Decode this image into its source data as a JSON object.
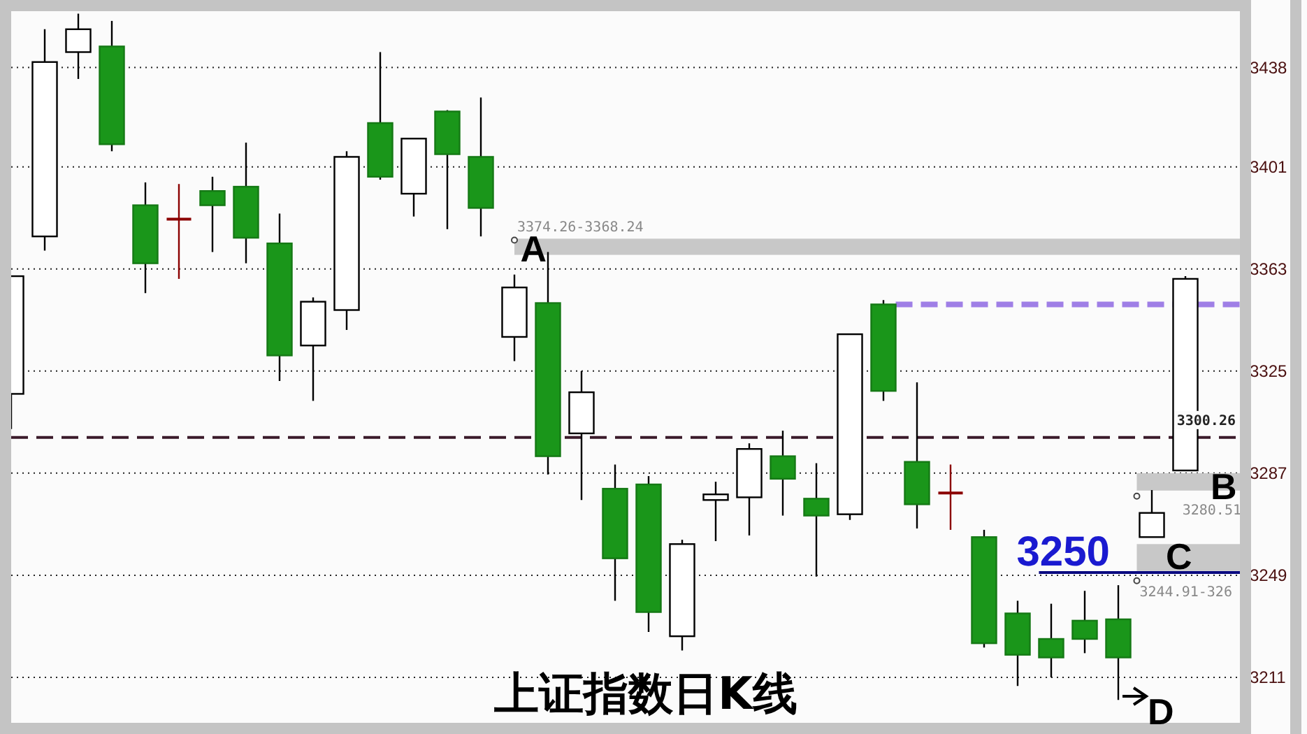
{
  "chart_data": {
    "type": "candlestick",
    "title": "上证指数日K线",
    "categories": [
      null,
      null,
      null,
      null,
      null,
      null,
      null,
      null,
      null,
      null,
      null,
      null,
      null,
      null,
      null,
      null,
      null,
      null,
      null,
      null,
      null,
      null,
      null,
      null,
      null,
      null,
      null,
      null,
      null,
      null,
      null,
      null,
      null,
      null,
      null,
      null
    ],
    "ohlc": [
      [
        3316.5,
        3360.3,
        3303.4,
        3360.3
      ],
      [
        3375.1,
        3452.2,
        3369.8,
        3440.0
      ],
      [
        3443.7,
        3458.0,
        3433.7,
        3452.2
      ],
      [
        3445.8,
        3455.3,
        3406.8,
        3409.4
      ],
      [
        3386.7,
        3395.2,
        3354.0,
        3365.1
      ],
      [
        3381.5,
        3394.6,
        3359.3,
        3381.5
      ],
      [
        3392.0,
        3397.3,
        3369.3,
        3386.7
      ],
      [
        3393.6,
        3410.0,
        3365.1,
        3374.6
      ],
      [
        3372.5,
        3383.6,
        3321.3,
        3330.8
      ],
      [
        3334.5,
        3352.4,
        3313.9,
        3350.8
      ],
      [
        3347.7,
        3406.8,
        3340.3,
        3404.7
      ],
      [
        3417.3,
        3443.7,
        3396.2,
        3397.3
      ],
      [
        3391.0,
        3411.5,
        3382.5,
        3411.5
      ],
      [
        3421.6,
        3422.1,
        3377.8,
        3405.7
      ],
      [
        3404.7,
        3426.8,
        3375.1,
        3385.7
      ],
      [
        3337.7,
        3360.9,
        3328.7,
        3356.1
      ],
      [
        3350.3,
        3369.3,
        3286.5,
        3293.3
      ],
      [
        3301.8,
        3325.0,
        3277.0,
        3317.1
      ],
      [
        3281.2,
        3290.2,
        3239.5,
        3255.3
      ],
      [
        3282.8,
        3285.9,
        3227.9,
        3235.3
      ],
      [
        3226.3,
        3262.2,
        3221.0,
        3260.6
      ],
      [
        3277.0,
        3283.8,
        3261.7,
        3279.1
      ],
      [
        3278.0,
        3298.1,
        3263.8,
        3296.0
      ],
      [
        3293.3,
        3302.8,
        3271.2,
        3284.9
      ],
      [
        3277.5,
        3290.7,
        3248.5,
        3271.2
      ],
      [
        3271.7,
        3338.7,
        3269.6,
        3338.7
      ],
      [
        3349.8,
        3351.4,
        3313.9,
        3317.6
      ],
      [
        3291.2,
        3320.8,
        3266.4,
        3275.4
      ],
      [
        3279.6,
        3290.2,
        3265.9,
        3279.6
      ],
      [
        3263.2,
        3265.9,
        3222.1,
        3223.7
      ],
      [
        3234.8,
        3239.5,
        3207.8,
        3219.4
      ],
      [
        3225.3,
        3238.4,
        3211.0,
        3218.4
      ],
      [
        3232.1,
        3243.2,
        3220.0,
        3225.3
      ],
      [
        3232.6,
        3245.3,
        3202.6,
        3218.4
      ],
      [
        3263.2,
        3280.7,
        3263.2,
        3272.2
      ],
      [
        3288.0,
        3360.3,
        3288.0,
        3359.3
      ]
    ],
    "colors": [
      "#ffffff",
      "#ffffff",
      "#ffffff",
      "#1a961a",
      "#1a961a",
      "#8b0000",
      "#1a961a",
      "#1a961a",
      "#1a961a",
      "#ffffff",
      "#ffffff",
      "#1a961a",
      "#ffffff",
      "#1a961a",
      "#1a961a",
      "#ffffff",
      "#1a961a",
      "#ffffff",
      "#1a961a",
      "#1a961a",
      "#ffffff",
      "#ffffff",
      "#ffffff",
      "#1a961a",
      "#1a961a",
      "#ffffff",
      "#1a961a",
      "#1a961a",
      "#8b0000",
      "#1a961a",
      "#1a961a",
      "#1a961a",
      "#1a961a",
      "#1a961a",
      "#ffffff",
      "#ffffff"
    ],
    "ylim": [
      3192,
      3461
    ],
    "yticks": [
      3211,
      3249,
      3287,
      3325,
      3363,
      3401,
      3438
    ],
    "grid": "y",
    "ref_lines": [
      {
        "axis": "y",
        "value": 3300.26,
        "label": "3300.26",
        "color": "#3a1a2a",
        "line_style": "dashed"
      },
      {
        "axis": "y",
        "value": 3349.8,
        "color": "#9f7fe6",
        "line_style": "dashed"
      },
      {
        "axis": "y",
        "value": 3250,
        "label": "3250",
        "color": "#0a0a80",
        "line_style": "solid"
      }
    ],
    "bands": [
      {
        "axis": "y",
        "from": 3368.24,
        "to": 3374.26,
        "label": "3374.26-3368.24",
        "color": "#c8c8c8"
      },
      {
        "axis": "y",
        "from": 3280.51,
        "to": 3287,
        "label": "3280.51",
        "color": "#c8c8c8"
      },
      {
        "axis": "y",
        "from": 3250.6,
        "to": 3260.6,
        "label": "3244.91-326",
        "color": "#c8c8c8"
      }
    ],
    "annotations": [
      "A",
      "B",
      "C",
      "D"
    ]
  }
}
